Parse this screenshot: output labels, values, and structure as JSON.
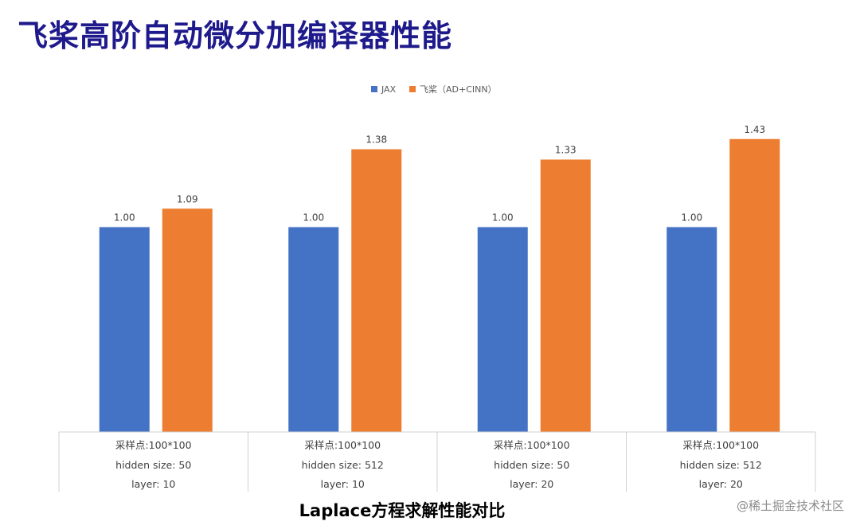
{
  "slide": {
    "title": "飞桨高阶自动微分加编译器性能",
    "caption": "Laplace方程求解性能对比",
    "watermark": "@稀土掘金技术社区"
  },
  "colors": {
    "title": "#1f1a8c",
    "jax": "#4472c4",
    "paddle": "#ed7d31"
  },
  "chart_data": {
    "type": "bar",
    "title": "",
    "xlabel": "",
    "ylabel": "",
    "ylim": [
      0,
      1.5
    ],
    "grid": false,
    "legend_position": "top-center",
    "categories": [
      [
        "采样点:100*100",
        "hidden size: 50",
        "layer: 10"
      ],
      [
        "采样点:100*100",
        "hidden size: 512",
        "layer: 10"
      ],
      [
        "采样点:100*100",
        "hidden size: 50",
        "layer: 20"
      ],
      [
        "采样点:100*100",
        "hidden size: 512",
        "layer: 20"
      ]
    ],
    "series": [
      {
        "name": "JAX",
        "values": [
          1.0,
          1.0,
          1.0,
          1.0
        ],
        "labels": [
          "1.00",
          "1.00",
          "1.00",
          "1.00"
        ]
      },
      {
        "name": "飞桨（AD+CINN）",
        "values": [
          1.09,
          1.38,
          1.33,
          1.43
        ],
        "labels": [
          "1.09",
          "1.38",
          "1.33",
          "1.43"
        ]
      }
    ]
  }
}
